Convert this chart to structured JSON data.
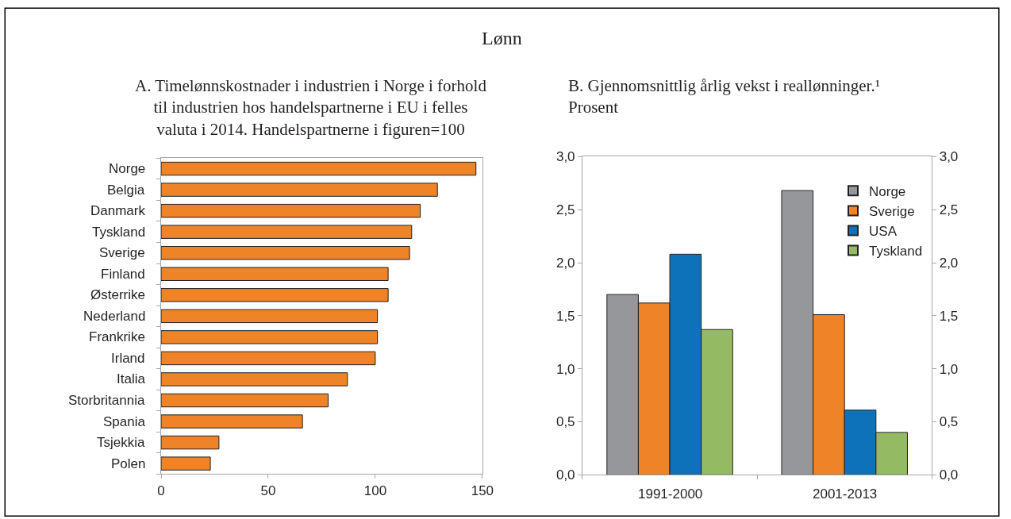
{
  "chart_data": [
    {
      "type": "bar",
      "orientation": "horizontal",
      "title": "A. Timelønnskostnader i industrien i Norge i forhold til industrien hos handelspartnerne i EU i felles valuta i 2014. Handelspartnerne i figuren=100",
      "annotations": [
        "Lønn"
      ],
      "categories": [
        "Norge",
        "Belgia",
        "Danmark",
        "Tyskland",
        "Sverige",
        "Finland",
        "Østerrike",
        "Nederland",
        "Frankrike",
        "Irland",
        "Italia",
        "Storbritannia",
        "Spania",
        "Tsjekkia",
        "Polen"
      ],
      "values": [
        147,
        129,
        121,
        117,
        116,
        106,
        106,
        101,
        101,
        100,
        87,
        78,
        66,
        27,
        23
      ],
      "color": "#ee8427",
      "xlim": [
        0,
        150
      ],
      "xticks": [
        0,
        50,
        100,
        150
      ]
    },
    {
      "type": "bar",
      "title": "B. Gjennomsnittlig årlig vekst i reallønninger.¹ Prosent",
      "categories": [
        "1991-2000",
        "2001-2013"
      ],
      "series": [
        {
          "name": "Norge",
          "color": "#96979b",
          "values": [
            1.7,
            2.68
          ]
        },
        {
          "name": "Sverige",
          "color": "#ee8427",
          "values": [
            1.62,
            1.51
          ]
        },
        {
          "name": "USA",
          "color": "#0e72ba",
          "values": [
            2.08,
            0.61
          ]
        },
        {
          "name": "Tyskland",
          "color": "#94bb64",
          "values": [
            1.37,
            0.4
          ]
        }
      ],
      "ylim": [
        0,
        3
      ],
      "yticks": [
        {
          "value": 0,
          "label": "0,0"
        },
        {
          "value": 0.5,
          "label": "0,5"
        },
        {
          "value": 1,
          "label": "1,0"
        },
        {
          "value": 1.5,
          "label": "1,5"
        },
        {
          "value": 2,
          "label": "2,0"
        },
        {
          "value": 2.5,
          "label": "2,5"
        },
        {
          "value": 3,
          "label": "3,0"
        }
      ],
      "y2lim": [
        0,
        3
      ],
      "y2ticks": [
        {
          "value": 0,
          "label": "0,0"
        },
        {
          "value": 0.5,
          "label": "0,5"
        },
        {
          "value": 1,
          "label": "1,0"
        },
        {
          "value": 1.5,
          "label": "1,5"
        },
        {
          "value": 2,
          "label": "2,0"
        },
        {
          "value": 2.5,
          "label": "2,5"
        },
        {
          "value": 3,
          "label": "3,0"
        }
      ],
      "legend": "top right"
    }
  ]
}
